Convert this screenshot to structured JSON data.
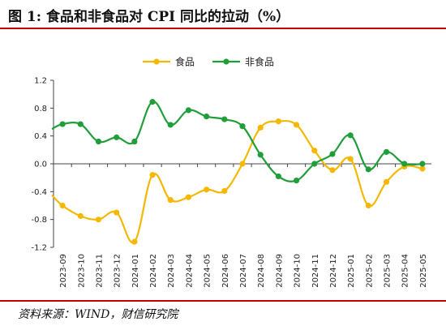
{
  "title": "图 1:  食品和非食品对 CPI 同比的拉动（%）",
  "source": "资料来源：WIND，财信研究院",
  "colors": {
    "food": "#f5b800",
    "nonfood": "#1f9e3a",
    "accent": "#c00000"
  },
  "chart_data": {
    "type": "line",
    "categories": [
      "2023-09",
      "2023-10",
      "2023-11",
      "2023-12",
      "2024-01",
      "2024-02",
      "2024-03",
      "2024-04",
      "2024-05",
      "2024-06",
      "2024-07",
      "2024-08",
      "2024-09",
      "2024-10",
      "2024-11",
      "2024-12",
      "2025-01",
      "2025-02",
      "2025-03",
      "2025-04",
      "2025-05"
    ],
    "series": [
      {
        "name": "食品",
        "color": "#f5b800",
        "values": [
          -0.6,
          -0.75,
          -0.8,
          -0.7,
          -1.12,
          -0.16,
          -0.52,
          -0.48,
          -0.37,
          -0.39,
          0.0,
          0.52,
          0.61,
          0.56,
          0.19,
          -0.09,
          0.07,
          -0.6,
          -0.26,
          -0.04,
          -0.07
        ]
      },
      {
        "name": "非食品",
        "color": "#1f9e3a",
        "values": [
          0.57,
          0.57,
          0.32,
          0.38,
          0.32,
          0.89,
          0.56,
          0.77,
          0.68,
          0.64,
          0.54,
          0.13,
          -0.18,
          -0.24,
          0.0,
          0.14,
          0.41,
          -0.08,
          0.17,
          0.0,
          0.0
        ]
      }
    ],
    "yticks": [
      "1.2",
      "0.8",
      "0.4",
      "0.0",
      "-0.4",
      "-0.8",
      "-1.2"
    ],
    "ylim": [
      -1.2,
      1.2
    ],
    "legend_position": "top-center",
    "grid": false
  }
}
